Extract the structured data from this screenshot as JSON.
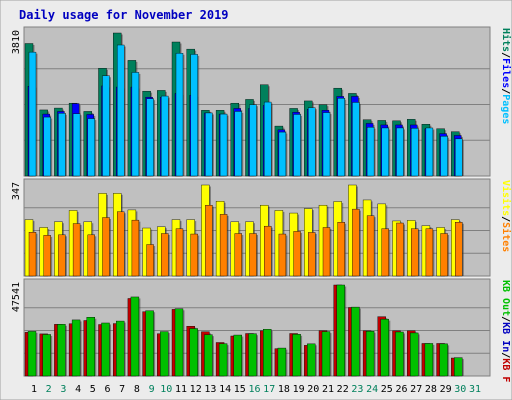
{
  "title": "Daily usage for November 2019",
  "colors": {
    "frame_bg": "#ececec",
    "plot_bg": "#c0c0c0",
    "title_text": "#0000c0",
    "hits": "#00805c",
    "files": "#0000ff",
    "pages": "#00c0ff",
    "visits": "#ffff00",
    "sites": "#ff8000",
    "kb_in": "#0000c0",
    "kb_out": "#00c000",
    "kb_f": "#c00000",
    "weekend_day": "#00805c",
    "weekday_day": "#000000"
  },
  "chart_data": [
    {
      "type": "bar",
      "panel": "hits-files-pages",
      "title": "Daily usage for November 2019",
      "max_label": "3810",
      "ylim": [
        0,
        3810
      ],
      "legend": [
        {
          "label": "Pages",
          "color": "#00c0ff"
        },
        {
          "label": "Files",
          "color": "#0000ff"
        },
        {
          "label": "Hits",
          "color": "#00805c"
        }
      ],
      "categories": [
        "1",
        "2",
        "3",
        "4",
        "5",
        "6",
        "7",
        "8",
        "9",
        "10",
        "11",
        "12",
        "13",
        "14",
        "15",
        "16",
        "17",
        "18",
        "19",
        "20",
        "21",
        "22",
        "23",
        "24",
        "25",
        "26",
        "27",
        "28",
        "29",
        "30",
        "31"
      ],
      "series": [
        {
          "name": "Hits",
          "values": [
            3530,
            1760,
            1810,
            1940,
            1720,
            2870,
            3810,
            3080,
            2260,
            2280,
            3570,
            3380,
            1750,
            1750,
            1940,
            2040,
            2430,
            1330,
            1800,
            2000,
            1900,
            2340,
            2200,
            1500,
            1480,
            1470,
            1510,
            1380,
            1260,
            1180,
            0
          ]
        },
        {
          "name": "Files",
          "values": [
            2390,
            1650,
            1720,
            1930,
            1640,
            2400,
            2370,
            2370,
            2100,
            2100,
            2200,
            2150,
            1680,
            1650,
            1800,
            1800,
            1880,
            1230,
            1700,
            1780,
            1750,
            2120,
            2120,
            1400,
            1360,
            1360,
            1360,
            1260,
            1130,
            1080,
            0
          ]
        },
        {
          "name": "Pages",
          "values": [
            3300,
            1570,
            1670,
            1660,
            1530,
            2670,
            3490,
            2760,
            2060,
            2130,
            3270,
            3240,
            1680,
            1650,
            1720,
            1900,
            1970,
            1170,
            1640,
            1820,
            1690,
            2070,
            1960,
            1300,
            1280,
            1280,
            1270,
            1280,
            1060,
            990,
            0
          ]
        }
      ]
    },
    {
      "type": "bar",
      "panel": "visits-sites",
      "max_label": "347",
      "ylim": [
        0,
        347
      ],
      "legend": [
        {
          "label": "Sites",
          "color": "#ff8000"
        },
        {
          "label": "Visits",
          "color": "#ffff00"
        }
      ],
      "categories": [
        "1",
        "2",
        "3",
        "4",
        "5",
        "6",
        "7",
        "8",
        "9",
        "10",
        "11",
        "12",
        "13",
        "14",
        "15",
        "16",
        "17",
        "18",
        "19",
        "20",
        "21",
        "22",
        "23",
        "24",
        "25",
        "26",
        "27",
        "28",
        "29",
        "30",
        "31"
      ],
      "series": [
        {
          "name": "Visits",
          "values": [
            215,
            185,
            207,
            250,
            207,
            315,
            315,
            252,
            183,
            188,
            215,
            215,
            347,
            285,
            207,
            207,
            270,
            250,
            240,
            257,
            270,
            284,
            347,
            290,
            275,
            210,
            212,
            192,
            185,
            215,
            0
          ]
        },
        {
          "name": "Sites",
          "values": [
            167,
            155,
            157,
            200,
            157,
            223,
            245,
            213,
            120,
            162,
            180,
            160,
            270,
            235,
            162,
            162,
            190,
            160,
            170,
            166,
            185,
            205,
            255,
            230,
            180,
            202,
            180,
            180,
            162,
            205,
            0
          ]
        }
      ]
    },
    {
      "type": "bar",
      "panel": "kb",
      "max_label": "47541",
      "ylim": [
        0,
        47541
      ],
      "legend": [
        {
          "label": "KB F",
          "color": "#c00000"
        },
        {
          "label": "KB In",
          "color": "#0000c0"
        },
        {
          "label": "KB Out",
          "color": "#00c000"
        }
      ],
      "categories": [
        "1",
        "2",
        "3",
        "4",
        "5",
        "6",
        "7",
        "8",
        "9",
        "10",
        "11",
        "12",
        "13",
        "14",
        "15",
        "16",
        "17",
        "18",
        "19",
        "20",
        "21",
        "22",
        "23",
        "24",
        "25",
        "26",
        "27",
        "28",
        "29",
        "30",
        "31"
      ],
      "series": [
        {
          "name": "KB F",
          "values": [
            22800,
            22000,
            27000,
            27300,
            29000,
            26900,
            27400,
            40500,
            33600,
            22100,
            34800,
            26000,
            23100,
            17500,
            20900,
            22200,
            23600,
            14300,
            22200,
            16000,
            23700,
            47541,
            35800,
            23600,
            31000,
            23600,
            23600,
            17000,
            17000,
            9400,
            0
          ]
        },
        {
          "name": "KB Out",
          "values": [
            23300,
            21700,
            27000,
            29300,
            30700,
            27700,
            28700,
            41300,
            34100,
            23200,
            35100,
            24800,
            21600,
            16900,
            21400,
            22100,
            24400,
            14600,
            21800,
            16800,
            23200,
            47541,
            36000,
            23400,
            29700,
            23000,
            22500,
            17000,
            16800,
            9600,
            0
          ]
        }
      ]
    }
  ],
  "day_labels": [
    "1",
    "2",
    "3",
    "4",
    "5",
    "6",
    "7",
    "8",
    "9",
    "10",
    "11",
    "12",
    "13",
    "14",
    "15",
    "16",
    "17",
    "18",
    "19",
    "20",
    "21",
    "22",
    "23",
    "24",
    "25",
    "26",
    "27",
    "28",
    "29",
    "30",
    "31"
  ],
  "weekend_days": [
    2,
    3,
    9,
    10,
    16,
    17,
    23,
    24,
    30,
    31
  ]
}
